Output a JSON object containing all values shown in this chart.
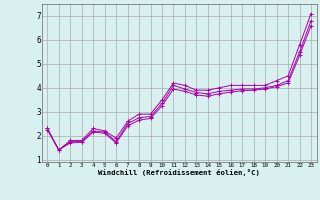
{
  "xlabel": "Windchill (Refroidissement éolien,°C)",
  "ylabel": "",
  "background_color": "#d8f0f0",
  "grid_color": "#aaaaaa",
  "line_color": "#aa00aa",
  "xlim": [
    -0.5,
    23.5
  ],
  "ylim": [
    0.9,
    7.5
  ],
  "yticks": [
    1,
    2,
    3,
    4,
    5,
    6,
    7
  ],
  "xticks": [
    0,
    1,
    2,
    3,
    4,
    5,
    6,
    7,
    8,
    9,
    10,
    11,
    12,
    13,
    14,
    15,
    16,
    17,
    18,
    19,
    20,
    21,
    22,
    23
  ],
  "series1_x": [
    0,
    1,
    2,
    3,
    4,
    5,
    6,
    7,
    8,
    9,
    10,
    11,
    12,
    13,
    14,
    15,
    16,
    17,
    18,
    19,
    20,
    21,
    22,
    23
  ],
  "series1_y": [
    2.3,
    1.4,
    1.8,
    1.8,
    2.3,
    2.2,
    1.9,
    2.6,
    2.9,
    2.9,
    3.5,
    4.2,
    4.1,
    3.9,
    3.9,
    4.0,
    4.1,
    4.1,
    4.1,
    4.1,
    4.3,
    4.5,
    5.8,
    7.1
  ],
  "series2_x": [
    0,
    1,
    2,
    3,
    4,
    5,
    6,
    7,
    8,
    9,
    10,
    11,
    12,
    13,
    14,
    15,
    16,
    17,
    18,
    19,
    20,
    21,
    22,
    23
  ],
  "series2_y": [
    2.3,
    1.4,
    1.75,
    1.75,
    2.2,
    2.15,
    1.75,
    2.5,
    2.75,
    2.8,
    3.35,
    4.1,
    3.95,
    3.8,
    3.75,
    3.85,
    3.9,
    3.95,
    3.95,
    4.0,
    4.1,
    4.3,
    5.5,
    6.8
  ],
  "series3_x": [
    0,
    1,
    2,
    3,
    4,
    5,
    6,
    7,
    8,
    9,
    10,
    11,
    12,
    13,
    14,
    15,
    16,
    17,
    18,
    19,
    20,
    21,
    22,
    23
  ],
  "series3_y": [
    2.25,
    1.4,
    1.7,
    1.72,
    2.15,
    2.1,
    1.7,
    2.4,
    2.65,
    2.72,
    3.25,
    3.95,
    3.85,
    3.7,
    3.65,
    3.75,
    3.82,
    3.88,
    3.9,
    3.95,
    4.05,
    4.2,
    5.35,
    6.6
  ],
  "xtick_fontsize": 4.2,
  "ytick_fontsize": 5.5,
  "xlabel_fontsize": 5.2
}
